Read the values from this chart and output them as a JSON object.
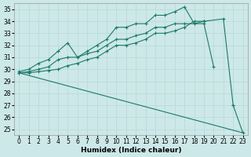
{
  "xlabel": "Humidex (Indice chaleur)",
  "bg_color": "#cde8e8",
  "grid_color": "#b8d8d8",
  "line_color": "#1a7a6a",
  "xlim": [
    -0.5,
    23.5
  ],
  "ylim": [
    24.5,
    35.5
  ],
  "xticks": [
    0,
    1,
    2,
    3,
    4,
    5,
    6,
    7,
    8,
    9,
    10,
    11,
    12,
    13,
    14,
    15,
    16,
    17,
    18,
    19,
    20,
    21,
    22,
    23
  ],
  "yticks": [
    25,
    26,
    27,
    28,
    29,
    30,
    31,
    32,
    33,
    34,
    35
  ],
  "series_with_markers": [
    {
      "x": [
        0,
        1,
        2,
        3,
        4,
        5,
        6,
        7,
        8,
        9,
        10,
        11,
        12,
        13,
        14,
        15,
        16,
        17,
        18,
        19,
        20
      ],
      "y": [
        29.8,
        30.0,
        30.5,
        30.8,
        31.5,
        32.2,
        31.0,
        31.5,
        32.0,
        32.5,
        33.5,
        33.5,
        33.8,
        33.8,
        34.5,
        34.5,
        34.8,
        35.2,
        33.8,
        33.8,
        30.2
      ]
    },
    {
      "x": [
        0,
        1,
        2,
        3,
        4,
        5,
        6,
        7,
        8,
        9,
        10,
        11,
        12,
        13,
        14,
        15,
        16,
        17,
        18,
        19
      ],
      "y": [
        29.7,
        29.8,
        30.0,
        30.2,
        30.8,
        31.0,
        31.0,
        31.3,
        31.5,
        32.0,
        32.5,
        32.5,
        32.8,
        33.0,
        33.5,
        33.5,
        33.8,
        33.8,
        33.8,
        34.0
      ]
    },
    {
      "x": [
        0,
        1,
        2,
        3,
        4,
        5,
        6,
        7,
        8,
        9,
        10,
        11,
        12,
        13,
        14,
        15,
        16,
        17,
        18,
        19
      ],
      "y": [
        29.7,
        29.7,
        29.8,
        29.9,
        30.0,
        30.3,
        30.5,
        30.8,
        31.0,
        31.5,
        32.0,
        32.0,
        32.2,
        32.5,
        33.0,
        33.0,
        33.2,
        33.5,
        34.0,
        34.0
      ]
    },
    {
      "x": [
        19,
        21,
        22
      ],
      "y": [
        34.0,
        34.2,
        27.0
      ]
    },
    {
      "x": [
        22,
        23
      ],
      "y": [
        27.0,
        24.7
      ]
    }
  ],
  "series_no_markers": [
    {
      "x": [
        0,
        23
      ],
      "y": [
        29.7,
        24.7
      ]
    }
  ]
}
